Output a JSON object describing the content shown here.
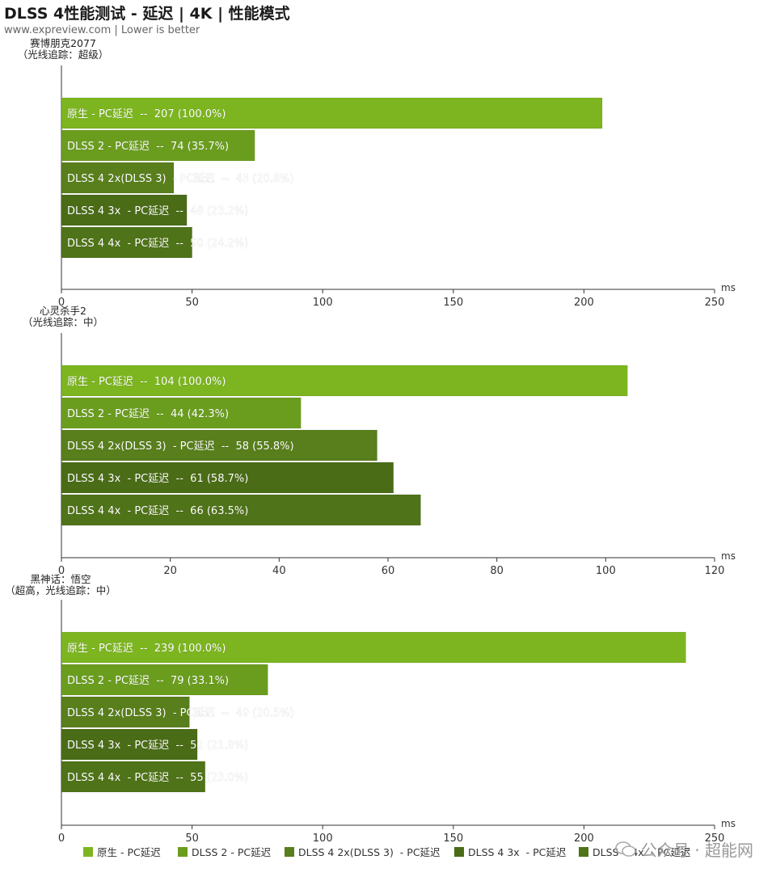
{
  "header": {
    "title": "DLSS 4性能测试 - 延迟 | 4K | 性能模式",
    "subtitle": "www.expreview.com | Lower is better"
  },
  "watermark": {
    "text": "公众号 · 超能网",
    "icon": "wechat-icon"
  },
  "colors": [
    "#7cb51f",
    "#6a9d1e",
    "#587f1b",
    "#4a6c16",
    "#4f7318"
  ],
  "chart_data": [
    {
      "type": "bar",
      "orientation": "horizontal",
      "game": "赛博朋克2077",
      "settings": "（光线追踪：超级）",
      "unit": "ms",
      "xlim": [
        0,
        250
      ],
      "ticks": [
        0,
        50,
        100,
        150,
        200,
        250
      ],
      "categories": [
        "原生 - PC延迟",
        "DLSS 2 - PC延迟",
        "DLSS 4 2x(DLSS 3) - PC延迟",
        "DLSS 4 3x - PC延迟",
        "DLSS 4 4x - PC延迟"
      ],
      "values": [
        207,
        74,
        43,
        48,
        50
      ],
      "labels": [
        "原生 - PC延迟  --  207 (100.0%)",
        "DLSS 2 - PC延迟  --  74 (35.7%)",
        "DLSS 4 2x(DLSS 3)  - PC延迟  --  43 (20.8%)",
        "DLSS 4 3x  - PC延迟  --  48 (23.2%)",
        "DLSS 4 4x  - PC延迟  --  50 (24.2%)"
      ]
    },
    {
      "type": "bar",
      "orientation": "horizontal",
      "game": "心灵杀手2",
      "settings": "（光线追踪：中）",
      "unit": "ms",
      "xlim": [
        0,
        120
      ],
      "ticks": [
        0,
        20,
        40,
        60,
        80,
        100,
        120
      ],
      "categories": [
        "原生 - PC延迟",
        "DLSS 2 - PC延迟",
        "DLSS 4 2x(DLSS 3) - PC延迟",
        "DLSS 4 3x - PC延迟",
        "DLSS 4 4x - PC延迟"
      ],
      "values": [
        104,
        44,
        58,
        61,
        66
      ],
      "labels": [
        "原生 - PC延迟  --  104 (100.0%)",
        "DLSS 2 - PC延迟  --  44 (42.3%)",
        "DLSS 4 2x(DLSS 3)  - PC延迟  --  58 (55.8%)",
        "DLSS 4 3x  - PC延迟  --  61 (58.7%)",
        "DLSS 4 4x  - PC延迟  --  66 (63.5%)"
      ]
    },
    {
      "type": "bar",
      "orientation": "horizontal",
      "game": "黑神话：悟空",
      "settings": "（超高，光线追踪：中）",
      "unit": "ms",
      "xlim": [
        0,
        250
      ],
      "ticks": [
        0,
        50,
        100,
        150,
        200,
        250
      ],
      "categories": [
        "原生 - PC延迟",
        "DLSS 2 - PC延迟",
        "DLSS 4 2x(DLSS 3) - PC延迟",
        "DLSS 4 3x - PC延迟",
        "DLSS 4 4x - PC延迟"
      ],
      "values": [
        239,
        79,
        49,
        52,
        55
      ],
      "labels": [
        "原生 - PC延迟  --  239 (100.0%)",
        "DLSS 2 - PC延迟  --  79 (33.1%)",
        "DLSS 4 2x(DLSS 3)  - PC延迟  --  49 (20.5%)",
        "DLSS 4 3x  - PC延迟  --  52 (21.8%)",
        "DLSS 4 4x  - PC延迟  --  55 (23.0%)"
      ]
    }
  ],
  "legend": {
    "position": "bottom",
    "items": [
      "原生 - PC延迟",
      "DLSS 2 - PC延迟",
      "DLSS 4 2x(DLSS 3)  - PC延迟",
      "DLSS 4 3x  - PC延迟",
      "DLSS 4 4x  - PC延迟"
    ]
  }
}
